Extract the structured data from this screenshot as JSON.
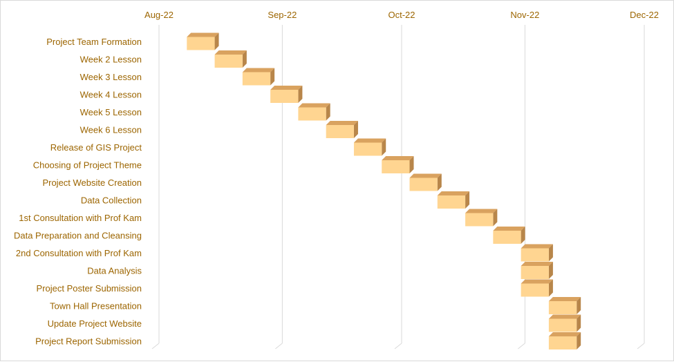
{
  "chart_data": {
    "type": "bar",
    "orientation": "horizontal",
    "subtype": "gantt-3d",
    "title": "",
    "xlabel": "",
    "ylabel": "",
    "x_axis_position": "top",
    "gridlines": "vertical",
    "legend": "none",
    "x_ticks": [
      "Aug-22",
      "Sep-22",
      "Oct-22",
      "Nov-22",
      "Dec-22"
    ],
    "xlim": [
      "2022-08-01",
      "2022-12-01"
    ],
    "categories": [
      "Project Team Formation",
      "Week 2 Lesson",
      "Week 3 Lesson",
      "Week 4 Lesson",
      "Week 5 Lesson",
      "Week 6 Lesson",
      "Release of GIS Project",
      "Choosing of Project Theme",
      "Project Website Creation",
      "Data Collection",
      "1st Consultation with Prof Kam",
      "Data Preparation and Cleansing",
      "2nd Consultation with Prof Kam",
      "Data Analysis",
      "Project Poster Submission",
      "Town Hall Presentation",
      "Update Project Website",
      "Project Report Submission"
    ],
    "series": [
      {
        "start": [
          "2022-08-08",
          "2022-08-15",
          "2022-08-22",
          "2022-08-29",
          "2022-09-05",
          "2022-09-12",
          "2022-09-19",
          "2022-09-26",
          "2022-10-03",
          "2022-10-10",
          "2022-10-17",
          "2022-10-24",
          "2022-10-31",
          "2022-10-31",
          "2022-10-31",
          "2022-11-07",
          "2022-11-07",
          "2022-11-07"
        ],
        "end": [
          "2022-08-15",
          "2022-08-22",
          "2022-08-29",
          "2022-09-05",
          "2022-09-12",
          "2022-09-19",
          "2022-09-26",
          "2022-10-03",
          "2022-10-10",
          "2022-10-17",
          "2022-10-24",
          "2022-10-31",
          "2022-11-07",
          "2022-11-07",
          "2022-11-07",
          "2022-11-14",
          "2022-11-14",
          "2022-11-14"
        ]
      }
    ],
    "colors": {
      "bar_front": "#FFD591",
      "bar_top": "#D9A25F",
      "bar_side": "#B8864A",
      "label_text": "#9C6500",
      "gridline": "#D9D9D9"
    }
  }
}
